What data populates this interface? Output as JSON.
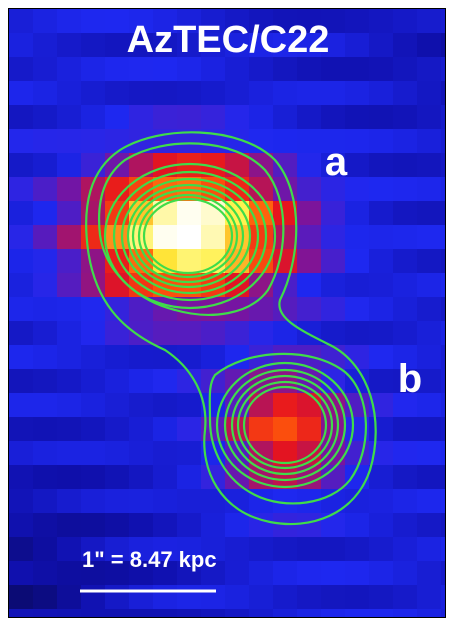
{
  "image": {
    "title": "AzTEC/C22",
    "labels": [
      "a",
      "b"
    ],
    "scale_bar": "1\" = 8.47 kpc"
  }
}
